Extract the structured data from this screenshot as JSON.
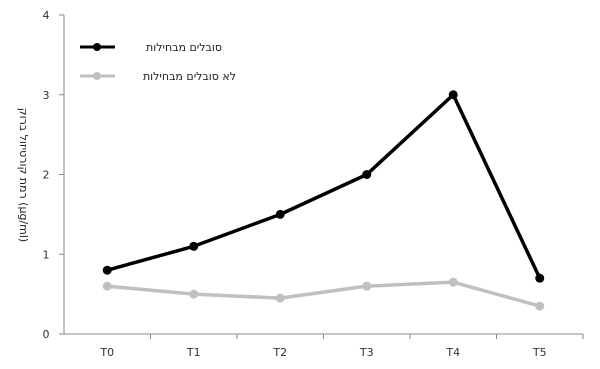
{
  "chart_data": {
    "type": "line",
    "title": "",
    "xlabel": "",
    "ylabel": "רמת קורטיזול ברוק (µg/ml)",
    "categories": [
      "T0",
      "T1",
      "T2",
      "T3",
      "T4",
      "T5"
    ],
    "ylim": [
      0,
      4
    ],
    "yticks": [
      0,
      1,
      2,
      3,
      4
    ],
    "grid": false,
    "legend_position": "top-left",
    "series": [
      {
        "name": "סובלים מבחילות",
        "color": "#000000",
        "values": [
          0.8,
          1.1,
          1.5,
          2.0,
          3.0,
          0.7
        ]
      },
      {
        "name": "לא סובלים מבחילות",
        "color": "#c0c0c0",
        "values": [
          0.6,
          0.5,
          0.45,
          0.6,
          0.65,
          0.35
        ]
      }
    ]
  }
}
